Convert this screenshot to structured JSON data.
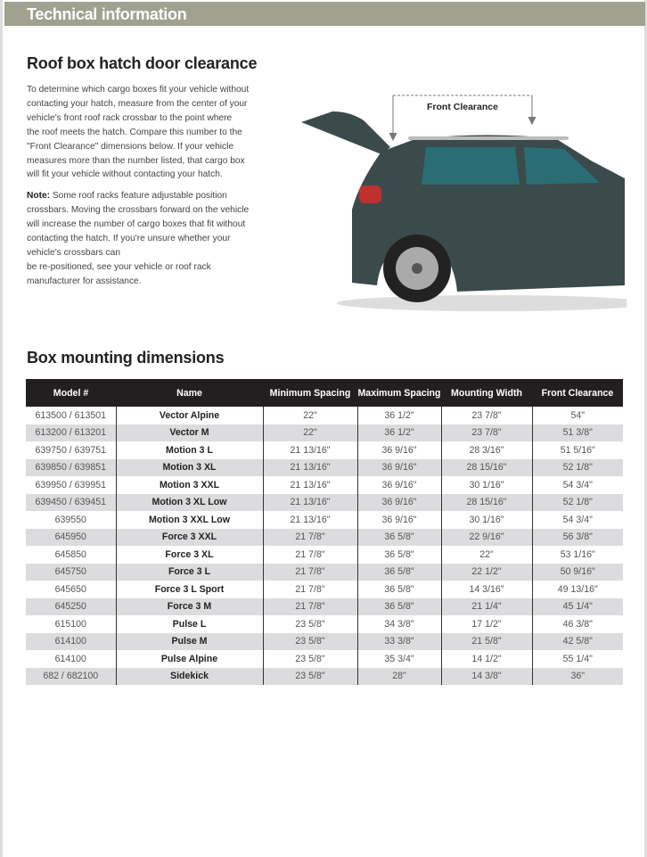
{
  "header": {
    "title": "Technical information"
  },
  "clearance": {
    "title": "Roof box hatch door clearance",
    "paragraph_lines": [
      "To determine which cargo boxes fit your vehicle without",
      "contacting your hatch, measure from the center of your",
      "vehicle's front roof rack crossbar to the point where",
      "the roof meets the hatch. Compare this number to the",
      "\"Front Clearance\" dimensions below. If your vehicle",
      "measures more than the number listed, that cargo box",
      "will fit your vehicle without contacting your hatch."
    ],
    "note_label": "Note:",
    "note_lines": [
      " Some roof racks feature adjustable position",
      "crossbars. Moving the crossbars forward on the vehicle",
      "will increase the number of cargo boxes that fit without",
      "contacting the hatch. If you're unsure whether your",
      "vehicle's crossbars can",
      "be re-positioned, see your vehicle or roof rack",
      "manufacturer for assistance."
    ],
    "diagram_label": "Front Clearance",
    "car_color": "#3b4a4b"
  },
  "dimensions": {
    "title": "Box mounting dimensions",
    "columns": [
      "Model #",
      "Name",
      "Minimum Spacing",
      "Maximum Spacing",
      "Mounting Width",
      "Front Clearance"
    ],
    "rows": [
      [
        "613500 / 613501",
        "Vector Alpine",
        "22\"",
        "36 1/2\"",
        "23 7/8\"",
        "54\""
      ],
      [
        "613200 / 613201",
        "Vector M",
        "22\"",
        "36 1/2\"",
        "23 7/8\"",
        "51 3/8\""
      ],
      [
        "639750 / 639751",
        "Motion 3 L",
        "21 13/16\"",
        "36 9/16\"",
        "28 3/16\"",
        "51 5/16\""
      ],
      [
        "639850 / 639851",
        "Motion 3 XL",
        "21 13/16\"",
        "36 9/16\"",
        "28 15/16\"",
        "52 1/8\""
      ],
      [
        "639950 / 639951",
        "Motion 3 XXL",
        "21 13/16\"",
        "36 9/16\"",
        "30 1/16\"",
        "54 3/4\""
      ],
      [
        "639450 / 639451",
        "Motion 3 XL Low",
        "21 13/16\"",
        "36 9/16\"",
        "28 15/16\"",
        "52 1/8\""
      ],
      [
        "639550",
        "Motion 3 XXL Low",
        "21 13/16\"",
        "36 9/16\"",
        "30 1/16\"",
        "54 3/4\""
      ],
      [
        "645950",
        "Force 3 XXL",
        "21 7/8\"",
        "36 5/8\"",
        "22 9/16\"",
        "56 3/8\""
      ],
      [
        "645850",
        "Force 3 XL",
        "21 7/8\"",
        "36 5/8\"",
        "22\"",
        "53 1/16\""
      ],
      [
        "645750",
        "Force 3 L",
        "21 7/8\"",
        "36 5/8\"",
        "22 1/2\"",
        "50 9/16\""
      ],
      [
        "645650",
        "Force 3 L Sport",
        "21 7/8\"",
        "36 5/8\"",
        "14 3/16\"",
        "49 13/16\""
      ],
      [
        "645250",
        "Force 3 M",
        "21 7/8\"",
        "36 5/8\"",
        "21 1/4\"",
        "45 1/4\""
      ],
      [
        "615100",
        "Pulse L",
        "23 5/8\"",
        "34 3/8\"",
        "17 1/2\"",
        "46 3/8\""
      ],
      [
        "614100",
        "Pulse M",
        "23 5/8\"",
        "33 3/8\"",
        "21 5/8\"",
        "42 5/8\""
      ],
      [
        "614100",
        "Pulse Alpine",
        "23 5/8\"",
        "35 3/4\"",
        "14 1/2\"",
        "55 1/4\""
      ],
      [
        "682 / 682100",
        "Sidekick",
        "23 5/8\"",
        "28\"",
        "14 3/8\"",
        "36\""
      ]
    ]
  }
}
